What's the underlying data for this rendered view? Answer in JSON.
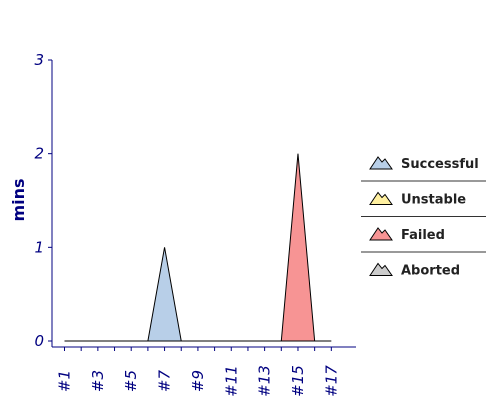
{
  "chart_data": {
    "type": "area",
    "ylabel": "mins",
    "ylim": [
      0,
      3
    ],
    "yticks": [
      "0",
      "1",
      "2",
      "3"
    ],
    "x": [
      1,
      2,
      3,
      4,
      5,
      6,
      7,
      8,
      9,
      10,
      11,
      12,
      13,
      14,
      15,
      16,
      17
    ],
    "xtick_labels": [
      "#1",
      "#3",
      "#5",
      "#7",
      "#9",
      "#11",
      "#13",
      "#15",
      "#17"
    ],
    "xtick_values": [
      1,
      3,
      5,
      7,
      9,
      11,
      13,
      15,
      17
    ],
    "series": [
      {
        "name": "Successful",
        "color": "#b8cfe8",
        "values": [
          0,
          0,
          0,
          0,
          0,
          0,
          1,
          0,
          0,
          0,
          0,
          0,
          0,
          0,
          0,
          0,
          0
        ]
      },
      {
        "name": "Unstable",
        "color": "#fff0a0",
        "values": [
          0,
          0,
          0,
          0,
          0,
          0,
          0,
          0,
          0,
          0,
          0,
          0,
          0,
          0,
          0,
          0,
          0
        ]
      },
      {
        "name": "Failed",
        "color": "#f79494",
        "values": [
          0,
          0,
          0,
          0,
          0,
          0,
          0,
          0,
          0,
          0,
          0,
          0,
          0,
          0,
          2,
          0,
          0
        ]
      },
      {
        "name": "Aborted",
        "color": "#cccccc",
        "values": [
          0,
          0,
          0,
          0,
          0,
          0,
          0,
          0,
          0,
          0,
          0,
          0,
          0,
          0,
          0,
          0,
          0
        ]
      }
    ],
    "legend_position": "right",
    "grid": false
  }
}
